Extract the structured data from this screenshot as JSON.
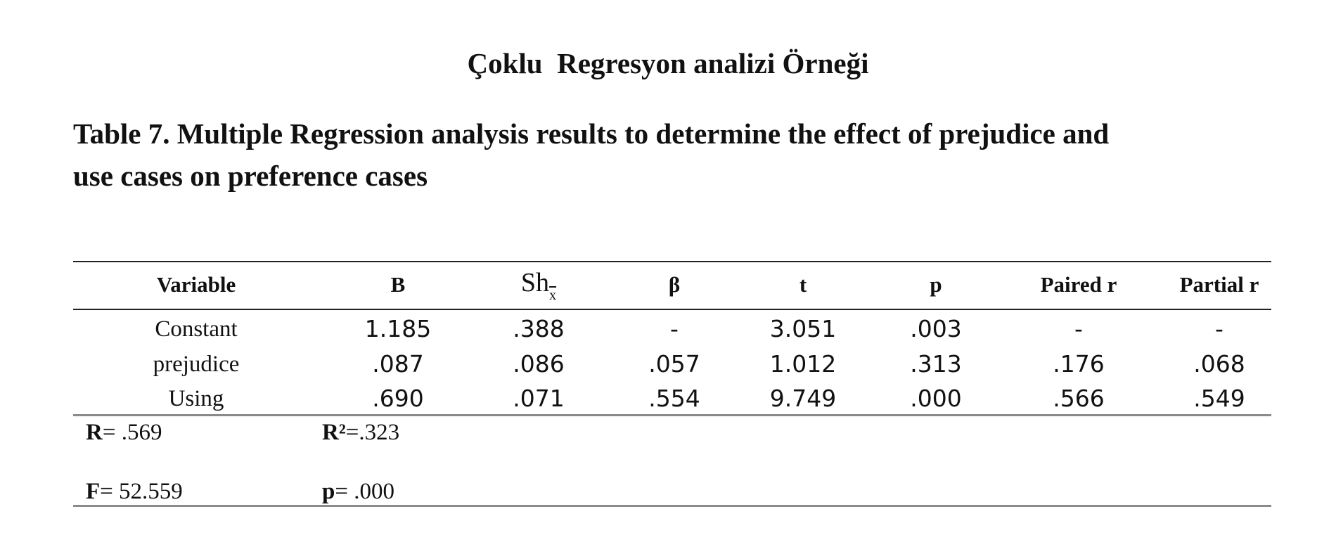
{
  "heading": "Çoklu  Regresyon analizi Örneği",
  "caption": {
    "line1": "Table 7. Multiple Regression analysis results to determine the effect of prejudice and",
    "line2": "use cases on preference cases"
  },
  "table": {
    "headers": {
      "variable": "Variable",
      "b": "B",
      "sh_base": "Sh",
      "sh_sub": "x",
      "beta": "β",
      "t": "t",
      "p": "p",
      "paired_r": "Paired r",
      "partial_r": "Partial r"
    },
    "rows": [
      [
        "Constant",
        "1.185",
        ".388",
        "-",
        "3.051",
        ".003",
        "-",
        "-"
      ],
      [
        "prejudice",
        ".087",
        ".086",
        ".057",
        "1.012",
        ".313",
        ".176",
        ".068"
      ],
      [
        "Using",
        ".690",
        ".071",
        ".554",
        "9.749",
        ".000",
        ".566",
        ".549"
      ]
    ]
  },
  "stats": {
    "r_label": "R",
    "r_value": "= .569",
    "r2_label": "R²",
    "r2_value": "=.323",
    "f_label": "F",
    "f_value": "= 52.559",
    "p_label": "p",
    "p_value": "= .000"
  }
}
